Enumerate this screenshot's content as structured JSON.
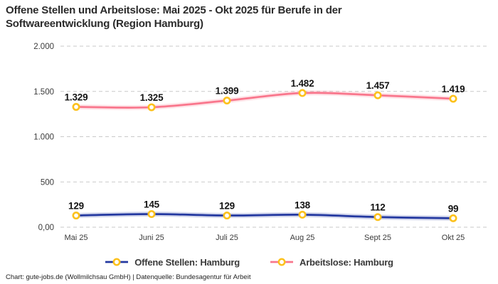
{
  "title": "Offene Stellen und Arbeitslose: Mai 2025 - Okt 2025 für Berufe in der Softwareentwicklung (Region Hamburg)",
  "footer": "Chart: gute-jobs.de (Wollmilchsau GmbH) | Datenquelle: Bundesagentur für Arbeit",
  "colors": {
    "open_positions_line": "#2338a0",
    "unemployed_line": "#f9768c",
    "marker_ring": "#fcc11c",
    "marker_fill": "#ffffff",
    "gridline": "#c9c9c9",
    "title_text": "#2b2b2b",
    "axis_text": "#3a3a3a",
    "value_label_text": "#141414"
  },
  "chart_data": {
    "type": "line",
    "title": "Offene Stellen und Arbeitslose: Mai 2025 - Okt 2025 für Berufe in der Softwareentwicklung (Region Hamburg)",
    "categories": [
      "Mai 25",
      "Juni 25",
      "Juli 25",
      "Aug 25",
      "Sept 25",
      "Okt 25"
    ],
    "series": [
      {
        "name": "Offene Stellen: Hamburg",
        "values": [
          129,
          145,
          129,
          138,
          112,
          99
        ],
        "labels": [
          "129",
          "145",
          "129",
          "138",
          "112",
          "99"
        ],
        "color": "#2338a0"
      },
      {
        "name": "Arbeitslose: Hamburg",
        "values": [
          1329,
          1325,
          1399,
          1482,
          1457,
          1419
        ],
        "labels": [
          "1.329",
          "1.325",
          "1.399",
          "1.482",
          "1.457",
          "1.419"
        ],
        "color": "#f9768c"
      }
    ],
    "xlabel": "",
    "ylabel": "",
    "ylim": [
      0,
      2000
    ],
    "yticks": [
      {
        "value": 0,
        "label": "0,00"
      },
      {
        "value": 500,
        "label": "500"
      },
      {
        "value": 1000,
        "label": "1.000"
      },
      {
        "value": 1500,
        "label": "1.500"
      },
      {
        "value": 2000,
        "label": "2.000"
      }
    ],
    "grid": true,
    "legend_position": "bottom"
  }
}
